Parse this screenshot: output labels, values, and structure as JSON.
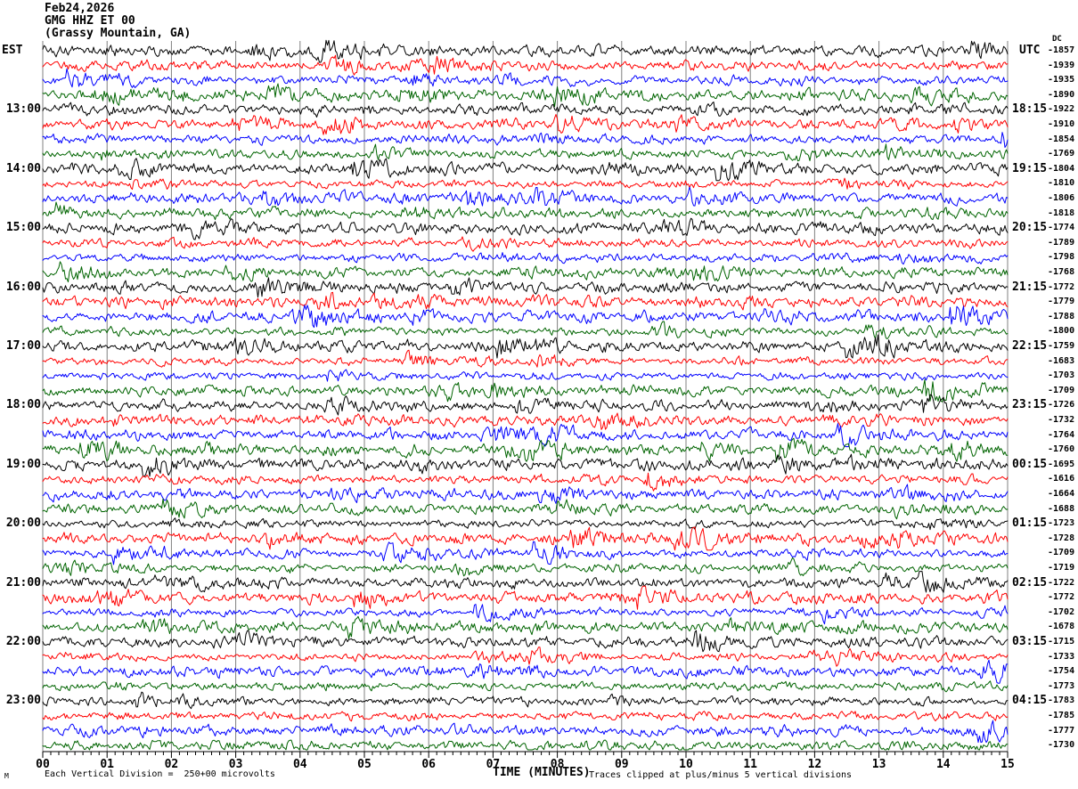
{
  "title": {
    "date": "Feb24,2026",
    "station": "GMG HHZ ET 00",
    "location": "(Grassy Mountain, GA)"
  },
  "axes": {
    "left_header": "EST",
    "right_header": "UTC",
    "dc_header": "DC",
    "left_hours": [
      "13:00",
      "14:00",
      "15:00",
      "16:00",
      "17:00",
      "18:00",
      "19:00",
      "20:00",
      "21:00",
      "22:00",
      "23:00"
    ],
    "right_hours": [
      "18:15",
      "19:15",
      "20:15",
      "21:15",
      "22:15",
      "23:15",
      "00:15",
      "01:15",
      "02:15",
      "03:15",
      "04:15"
    ],
    "x_ticks": [
      "00",
      "01",
      "02",
      "03",
      "04",
      "05",
      "06",
      "07",
      "08",
      "09",
      "10",
      "11",
      "12",
      "13",
      "14",
      "15"
    ],
    "x_label": "TIME (MINUTES)"
  },
  "dc_values": [
    "-1857",
    "-1939",
    "-1935",
    "-1890",
    "-1922",
    "-1910",
    "-1854",
    "-1769",
    "-1804",
    "-1810",
    "-1806",
    "-1818",
    "-1774",
    "-1789",
    "-1798",
    "-1768",
    "-1772",
    "-1779",
    "-1788",
    "-1800",
    "-1759",
    "-1683",
    "-1703",
    "-1709",
    "-1726",
    "-1732",
    "-1764",
    "-1760",
    "-1695",
    "-1616",
    "-1664",
    "-1688",
    "-1723",
    "-1728",
    "-1709",
    "-1719",
    "-1722",
    "-1772",
    "-1702",
    "-1678",
    "-1715",
    "-1733",
    "-1754",
    "-1773",
    "-1783",
    "-1785",
    "-1777",
    "-1730"
  ],
  "footer": {
    "corner_mark": "M",
    "scale_note": "Each Vertical Division =  250+00 microvolts",
    "clip_note": "Traces clipped at plus/minus 5 vertical divisions"
  },
  "colors": {
    "background": "#ffffff",
    "grid": "#808080",
    "axis": "#000000",
    "text": "#000000",
    "trace_cycle": [
      "#000000",
      "#ff0000",
      "#0000ff",
      "#006400"
    ]
  },
  "chart_data": {
    "type": "line",
    "subtype": "helicorder-seismogram",
    "title": "Feb24,2026 GMG HHZ ET 00 (Grassy Mountain, GA)",
    "xlabel": "TIME (MINUTES)",
    "xlim": [
      0,
      15
    ],
    "minutes_per_line": 15,
    "x_ticks": [
      "00",
      "01",
      "02",
      "03",
      "04",
      "05",
      "06",
      "07",
      "08",
      "09",
      "10",
      "11",
      "12",
      "13",
      "14",
      "15"
    ],
    "rows_total": 48,
    "traces_per_hour": 4,
    "color_cycle": [
      "#000000",
      "#ff0000",
      "#0000ff",
      "#006400"
    ],
    "left_hour_ticks": [
      "13:00",
      "14:00",
      "15:00",
      "16:00",
      "17:00",
      "18:00",
      "19:00",
      "20:00",
      "21:00",
      "22:00",
      "23:00"
    ],
    "right_hour_ticks": [
      "18:15",
      "19:15",
      "20:15",
      "21:15",
      "22:15",
      "23:15",
      "00:15",
      "01:15",
      "02:15",
      "03:15",
      "04:15"
    ],
    "dc_offsets": [
      -1857,
      -1939,
      -1935,
      -1890,
      -1922,
      -1910,
      -1854,
      -1769,
      -1804,
      -1810,
      -1806,
      -1818,
      -1774,
      -1789,
      -1798,
      -1768,
      -1772,
      -1779,
      -1788,
      -1800,
      -1759,
      -1683,
      -1703,
      -1709,
      -1726,
      -1732,
      -1764,
      -1760,
      -1695,
      -1616,
      -1664,
      -1688,
      -1723,
      -1728,
      -1709,
      -1719,
      -1722,
      -1772,
      -1702,
      -1678,
      -1715,
      -1733,
      -1754,
      -1773,
      -1783,
      -1785,
      -1777,
      -1730
    ],
    "scale_note": "Each Vertical Division =  250+00 microvolts",
    "clip_note": "Traces clipped at plus/minus 5 vertical divisions"
  }
}
